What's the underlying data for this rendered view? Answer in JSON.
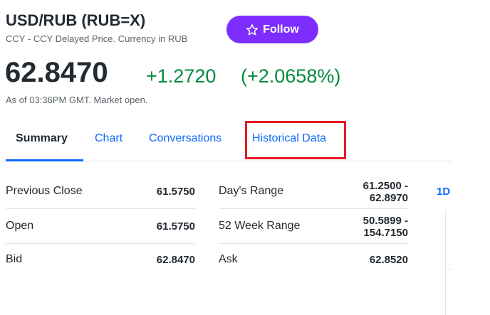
{
  "header": {
    "title": "USD/RUB (RUB=X)",
    "subtitle": "CCY - CCY Delayed Price. Currency in RUB",
    "follow_button": "Follow"
  },
  "quote": {
    "price": "62.8470",
    "change": "+1.2720",
    "change_percent": "(+2.0658%)",
    "as_of": "As of 03:36PM GMT. Market open."
  },
  "tabs": [
    "Summary",
    "Chart",
    "Conversations",
    "Historical Data"
  ],
  "summary": {
    "left": [
      [
        "Previous Close",
        "61.5750"
      ],
      [
        "Open",
        "61.5750"
      ],
      [
        "Bid",
        "62.8470"
      ]
    ],
    "right": [
      [
        "Day's Range",
        [
          "61.2500 -",
          "62.8970"
        ]
      ],
      [
        "52 Week Range",
        [
          "50.5899 -",
          "154.7150"
        ]
      ],
      [
        "Ask",
        [
          "62.8520"
        ]
      ]
    ]
  },
  "chart_range": "1D"
}
